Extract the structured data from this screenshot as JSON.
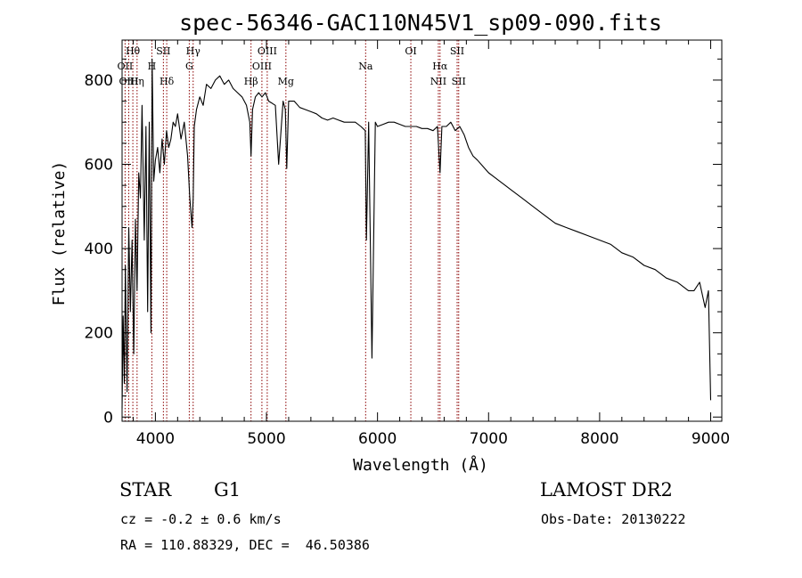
{
  "chart_data": {
    "type": "line",
    "title": "spec-56346-GAC110N45V1_sp09-090.fits",
    "xlabel": "Wavelength (Å)",
    "ylabel": "Flux (relative)",
    "xlim": [
      3700,
      9100
    ],
    "ylim": [
      -10,
      895
    ],
    "x_ticks": [
      4000,
      5000,
      6000,
      7000,
      8000,
      9000
    ],
    "y_ticks": [
      0,
      200,
      400,
      600,
      800
    ],
    "grid": false,
    "series": [
      {
        "x": [
          3700,
          3710,
          3720,
          3730,
          3745,
          3760,
          3775,
          3790,
          3805,
          3820,
          3835,
          3850,
          3865,
          3880,
          3900,
          3915,
          3930,
          3945,
          3960,
          3970,
          3985,
          4000,
          4020,
          4040,
          4060,
          4080,
          4100,
          4120,
          4140,
          4160,
          4180,
          4200,
          4230,
          4260,
          4290,
          4310,
          4330,
          4340,
          4350,
          4370,
          4400,
          4430,
          4460,
          4500,
          4540,
          4580,
          4620,
          4660,
          4700,
          4740,
          4780,
          4820,
          4850,
          4861,
          4875,
          4900,
          4930,
          4960,
          4990,
          5020,
          5050,
          5080,
          5110,
          5150,
          5170,
          5183,
          5200,
          5250,
          5300,
          5350,
          5400,
          5450,
          5500,
          5550,
          5600,
          5650,
          5700,
          5750,
          5800,
          5850,
          5890,
          5900,
          5920,
          5950,
          5980,
          6000,
          6050,
          6100,
          6150,
          6200,
          6250,
          6300,
          6350,
          6400,
          6450,
          6500,
          6540,
          6563,
          6580,
          6620,
          6660,
          6700,
          6740,
          6780,
          6820,
          6860,
          6900,
          6950,
          7000,
          7050,
          7100,
          7150,
          7200,
          7300,
          7400,
          7500,
          7600,
          7700,
          7800,
          7900,
          8000,
          8100,
          8200,
          8300,
          8400,
          8500,
          8600,
          8700,
          8800,
          8850,
          8900,
          8950,
          8980,
          9000
        ],
        "y": [
          20,
          240,
          80,
          360,
          60,
          450,
          250,
          420,
          150,
          470,
          300,
          580,
          520,
          740,
          420,
          690,
          250,
          700,
          200,
          850,
          560,
          610,
          640,
          580,
          660,
          600,
          680,
          640,
          660,
          700,
          690,
          720,
          660,
          700,
          620,
          520,
          450,
          520,
          690,
          730,
          760,
          740,
          790,
          780,
          800,
          810,
          790,
          800,
          780,
          770,
          760,
          740,
          700,
          620,
          730,
          760,
          770,
          760,
          770,
          750,
          745,
          740,
          600,
          750,
          730,
          590,
          750,
          750,
          735,
          730,
          725,
          720,
          710,
          705,
          710,
          705,
          700,
          700,
          700,
          690,
          680,
          420,
          700,
          140,
          700,
          690,
          695,
          700,
          700,
          695,
          690,
          690,
          690,
          685,
          685,
          680,
          690,
          580,
          690,
          690,
          700,
          680,
          690,
          670,
          640,
          620,
          610,
          595,
          580,
          570,
          560,
          550,
          540,
          520,
          500,
          480,
          460,
          450,
          440,
          430,
          420,
          410,
          390,
          380,
          360,
          350,
          330,
          320,
          300,
          300,
          320,
          260,
          300,
          40
        ]
      }
    ],
    "lines": [
      {
        "label": "Hθ",
        "x": 3797,
        "row": 1
      },
      {
        "label": "OII",
        "x": 3727,
        "row": 2
      },
      {
        "label": "OIII",
        "x": 3760,
        "row": 3
      },
      {
        "label": "Hη",
        "x": 3835,
        "row": 3
      },
      {
        "label": "SII",
        "x": 4072,
        "row": 1
      },
      {
        "label": "H",
        "x": 3968,
        "row": 2
      },
      {
        "label": "Hδ",
        "x": 4102,
        "row": 3
      },
      {
        "label": "Hγ",
        "x": 4340,
        "row": 1
      },
      {
        "label": "G",
        "x": 4305,
        "row": 2
      },
      {
        "label": "OIII",
        "x": 5007,
        "row": 1
      },
      {
        "label": "OIII",
        "x": 4959,
        "row": 2
      },
      {
        "label": "Hβ",
        "x": 4861,
        "row": 3
      },
      {
        "label": "Mg",
        "x": 5175,
        "row": 3
      },
      {
        "label": "Na",
        "x": 5893,
        "row": 2
      },
      {
        "label": "OI",
        "x": 6300,
        "row": 1
      },
      {
        "label": "Hα",
        "x": 6563,
        "row": 2
      },
      {
        "label": "NII",
        "x": 6548,
        "row": 3
      },
      {
        "label": "SII",
        "x": 6717,
        "row": 1
      },
      {
        "label": "SII",
        "x": 6731,
        "row": 3
      }
    ]
  },
  "info": {
    "object_class": "STAR",
    "subclass": "G1",
    "survey": "LAMOST DR2",
    "cz": "cz = -0.2 ± 0.6 km/s",
    "obs_date": "Obs-Date: 20130222",
    "coords": "RA = 110.88329, DEC =  46.50386"
  },
  "colors": {
    "spectrum": "#000000",
    "line_markers": "#8b0000",
    "axes": "#000000"
  }
}
